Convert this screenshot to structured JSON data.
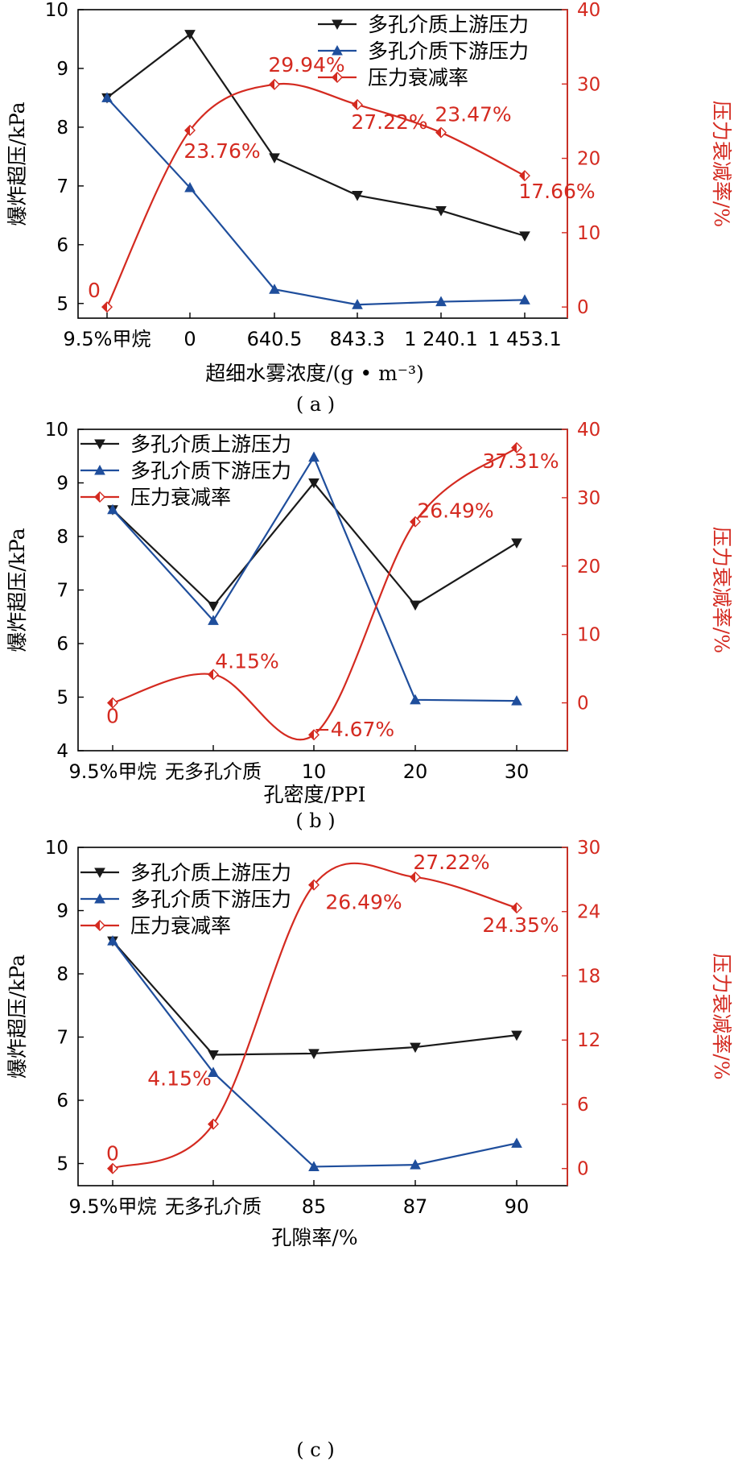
{
  "colors": {
    "upstream": "#1a1a1a",
    "downstream": "#1f4e9c",
    "attenuation": "#d42a20",
    "axis": "#000000",
    "right_axis": "#d42a20"
  },
  "chart_data": [
    {
      "type": "line",
      "caption": "( a )",
      "categories": [
        "9.5%甲烷",
        "0",
        "640.5",
        "843.3",
        "1 240.1",
        "1 453.1"
      ],
      "xlabel": "超细水雾浓度/(g • m⁻³)",
      "ylabel": "爆炸超压/kPa",
      "ylabel_right": "压力衰减率/%",
      "ylim": [
        4.75,
        10
      ],
      "yticks": [
        "5",
        "6",
        "7",
        "8",
        "9",
        "10"
      ],
      "ylim_right": [
        -1.5,
        40
      ],
      "yticks_right": [
        "0",
        "10",
        "20",
        "30",
        "40"
      ],
      "legend_position": "top-right",
      "series": [
        {
          "name": "多孔介质上游压力",
          "axis": "left",
          "marker": "triangle-down",
          "values": [
            8.5,
            9.58,
            7.48,
            6.84,
            6.58,
            6.15
          ]
        },
        {
          "name": "多孔介质下游压力",
          "axis": "left",
          "marker": "triangle-up",
          "values": [
            8.5,
            6.97,
            5.24,
            4.98,
            5.03,
            5.06
          ]
        },
        {
          "name": "压力衰减率",
          "axis": "right",
          "marker": "half-diamond",
          "smooth": true,
          "values": [
            0,
            23.76,
            29.94,
            27.22,
            23.47,
            17.66
          ]
        }
      ],
      "data_labels": [
        "0",
        "23.76%",
        "29.94%",
        "27.22%",
        "23.47%",
        "17.66%"
      ]
    },
    {
      "type": "line",
      "caption": "( b )",
      "categories": [
        "9.5%甲烷",
        "无多孔介质",
        "10",
        "20",
        "30"
      ],
      "xlabel": "孔密度/PPI",
      "ylabel": "爆炸超压/kPa",
      "ylabel_right": "压力衰减率/%",
      "ylim": [
        4,
        10
      ],
      "yticks": [
        "4",
        "5",
        "6",
        "7",
        "8",
        "9",
        "10"
      ],
      "ylim_right": [
        -7,
        40
      ],
      "yticks_right": [
        "0",
        "10",
        "20",
        "30",
        "40"
      ],
      "legend_position": "top-left",
      "series": [
        {
          "name": "多孔介质上游压力",
          "axis": "left",
          "marker": "triangle-down",
          "values": [
            8.5,
            6.7,
            9.0,
            6.72,
            7.88
          ]
        },
        {
          "name": "多孔介质下游压力",
          "axis": "left",
          "marker": "triangle-up",
          "values": [
            8.5,
            6.43,
            9.48,
            4.95,
            4.93
          ]
        },
        {
          "name": "压力衰减率",
          "axis": "right",
          "marker": "half-diamond",
          "smooth": true,
          "values": [
            0,
            4.15,
            -4.67,
            26.49,
            37.31
          ]
        }
      ],
      "data_labels": [
        "0",
        "4.15%",
        "−4.67%",
        "26.49%",
        "37.31%"
      ]
    },
    {
      "type": "line",
      "caption": "( c )",
      "categories": [
        "9.5%甲烷",
        "无多孔介质",
        "85",
        "87",
        "90"
      ],
      "xlabel": "孔隙率/%",
      "ylabel": "爆炸超压/kPa",
      "ylabel_right": "压力衰减率/%",
      "ylim": [
        4.65,
        10
      ],
      "yticks": [
        "5",
        "6",
        "7",
        "8",
        "9",
        "10"
      ],
      "ylim_right": [
        -1.6,
        30
      ],
      "yticks_right": [
        "0",
        "6",
        "12",
        "18",
        "24",
        "30"
      ],
      "legend_position": "top-left",
      "series": [
        {
          "name": "多孔介质上游压力",
          "axis": "left",
          "marker": "triangle-down",
          "values": [
            8.52,
            6.72,
            6.74,
            6.84,
            7.03
          ]
        },
        {
          "name": "多孔介质下游压力",
          "axis": "left",
          "marker": "triangle-up",
          "values": [
            8.52,
            6.44,
            4.95,
            4.98,
            5.32
          ]
        },
        {
          "name": "压力衰减率",
          "axis": "right",
          "marker": "half-diamond",
          "smooth": true,
          "values": [
            0,
            4.15,
            26.49,
            27.22,
            24.35
          ]
        }
      ],
      "data_labels": [
        "0",
        "4.15%",
        "26.49%",
        "27.22%",
        "24.35%"
      ]
    }
  ]
}
